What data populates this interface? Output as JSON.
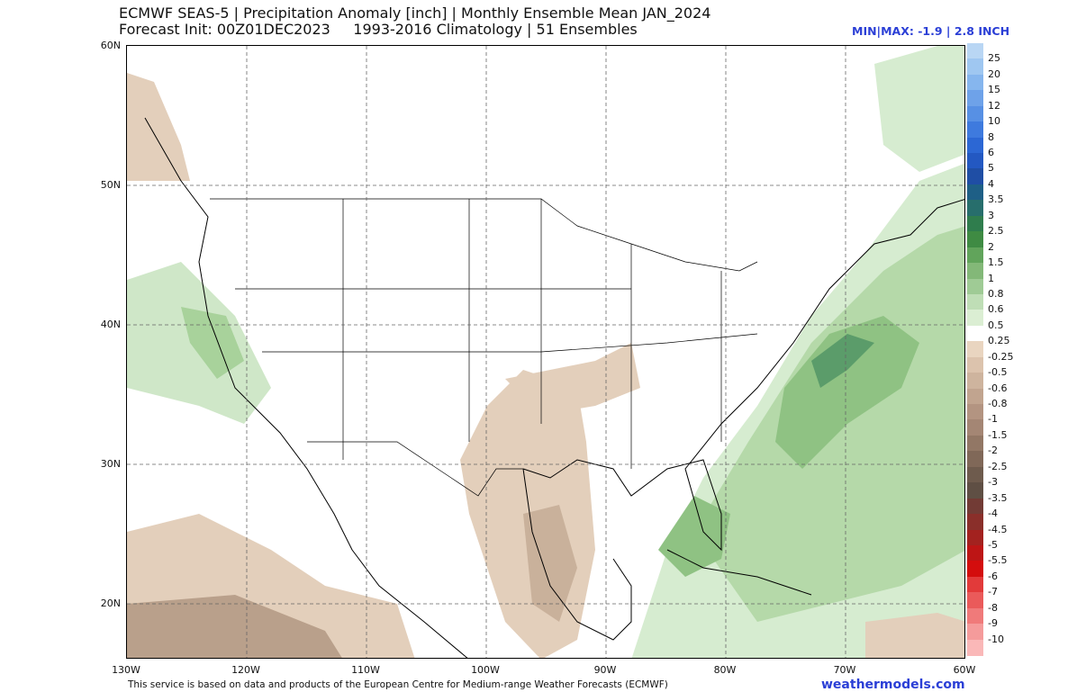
{
  "header": {
    "title_line1": "ECMWF SEAS-5 | Precipitation Anomaly [inch] | Monthly Ensemble Mean JAN_2024",
    "title_line2": "Forecast Init: 00Z01DEC2023     1993-2016 Climatology | 51 Ensembles",
    "minmax": "MIN|MAX: -1.9 | 2.8 INCH"
  },
  "axes": {
    "lat_labels": [
      "60N",
      "50N",
      "40N",
      "30N",
      "20N"
    ],
    "lon_labels": [
      "130W",
      "120W",
      "110W",
      "100W",
      "90W",
      "80W",
      "70W",
      "60W"
    ]
  },
  "legend": {
    "colors": [
      "#b9d6f4",
      "#9fc7f1",
      "#86b6ee",
      "#6ea2e9",
      "#5790e4",
      "#3e7ade",
      "#2c67d4",
      "#2358c2",
      "#1f4ea5",
      "#1e5f86",
      "#276e6c",
      "#2f7d4d",
      "#3f8b43",
      "#61a45b",
      "#83b878",
      "#9fcb95",
      "#bfdeb6",
      "#dbeed3",
      "#ffffff",
      "#e9d5c0",
      "#dcc3ad",
      "#ceb49e",
      "#c1a48f",
      "#b39481",
      "#a48674",
      "#927765",
      "#806858",
      "#6e5b4d",
      "#5f4f44",
      "#723b35",
      "#8a2f2a",
      "#a3221f",
      "#bd1515",
      "#d40d0d",
      "#e23a3a",
      "#ea5a5a",
      "#f07a7a",
      "#f59b9b",
      "#fab8b8"
    ],
    "labels": [
      "25",
      "20",
      "15",
      "12",
      "10",
      "8",
      "6",
      "5",
      "4",
      "3.5",
      "3",
      "2.5",
      "2",
      "1.5",
      "1",
      "0.8",
      "0.6",
      "0.5",
      "0.25",
      "-0.25",
      "-0.5",
      "-0.6",
      "-0.8",
      "-1",
      "-1.5",
      "-2",
      "-2.5",
      "-3",
      "-3.5",
      "-4",
      "-4.5",
      "-5",
      "-5.5",
      "-6",
      "-7",
      "-8",
      "-9",
      "-10"
    ]
  },
  "footer": {
    "credit": "This service is based on data and products of the European Centre for Medium-range Weather Forecasts (ECMWF)",
    "brand": "weathermodels.com"
  }
}
